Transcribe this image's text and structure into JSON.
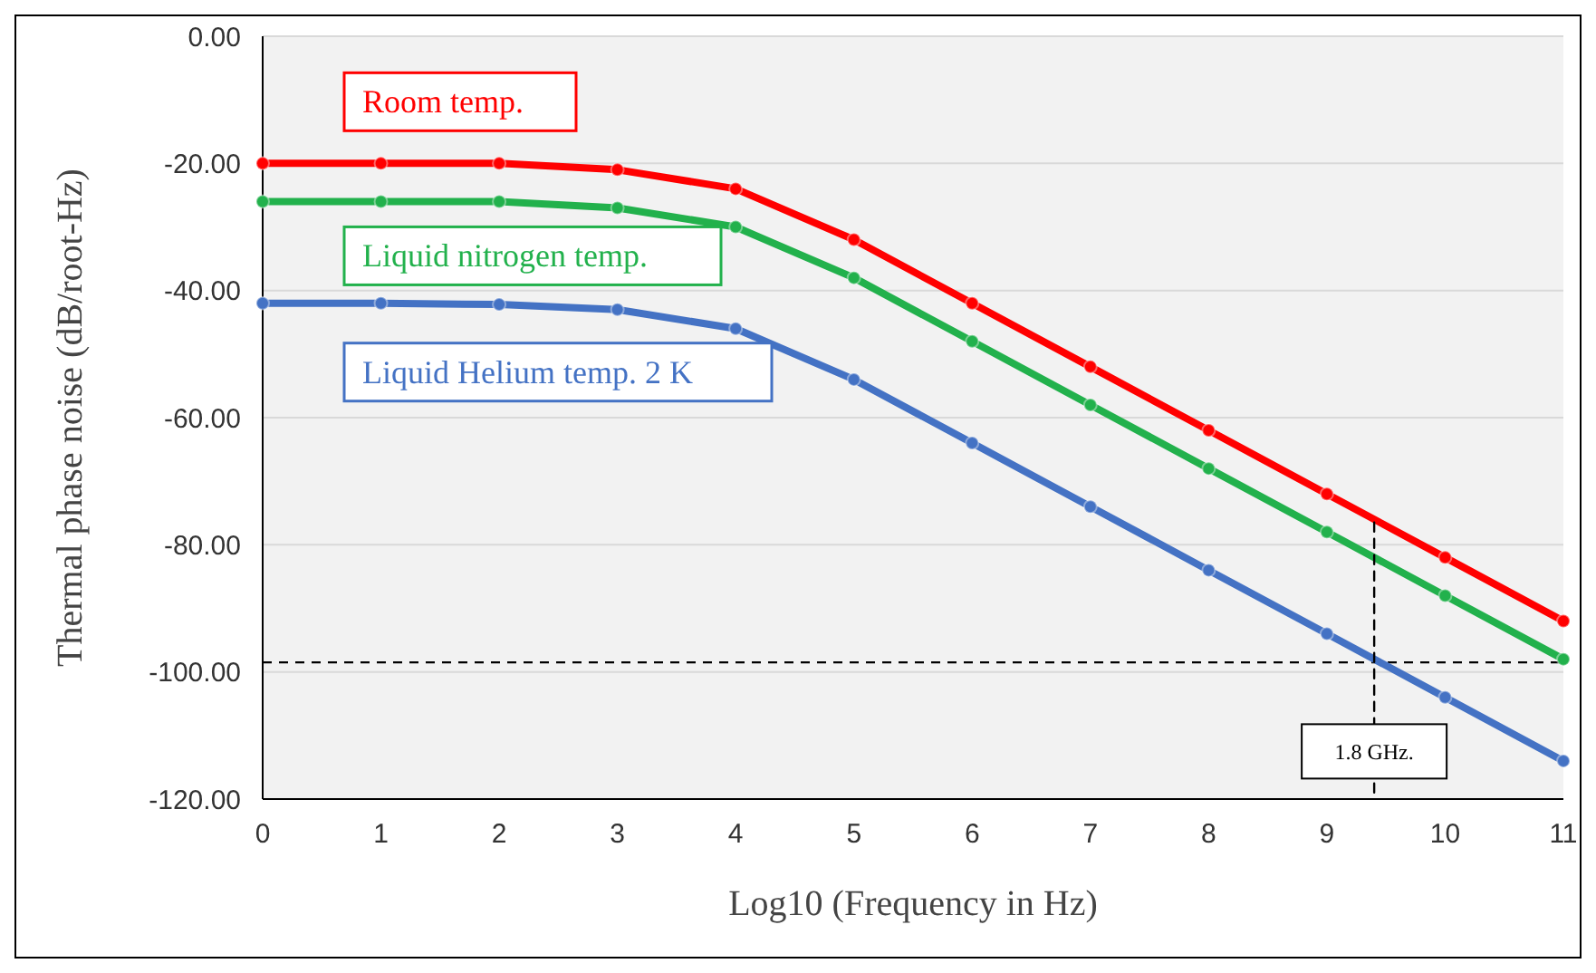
{
  "chart_data": {
    "type": "line",
    "xlabel": "Log10 (Frequency in Hz)",
    "ylabel": "Thermal  phase noise (dB/root-Hz)",
    "x": [
      0,
      1,
      2,
      3,
      4,
      5,
      6,
      7,
      8,
      9,
      10,
      11
    ],
    "xlim": [
      0,
      11
    ],
    "xticks": [
      0,
      1,
      2,
      3,
      4,
      5,
      6,
      7,
      8,
      9,
      10,
      11
    ],
    "ylim": [
      -120,
      0
    ],
    "yticks": [
      {
        "value": -120,
        "label": "-120.00"
      },
      {
        "value": -100,
        "label": "-100.00"
      },
      {
        "value": -80,
        "label": "-80.00"
      },
      {
        "value": -60,
        "label": "-60.00"
      },
      {
        "value": -40,
        "label": "-40.00"
      },
      {
        "value": -20,
        "label": "-20.00"
      },
      {
        "value": 0,
        "label": "0.00"
      }
    ],
    "grid": "y",
    "marker": "circle",
    "line_style": "solid",
    "series": [
      {
        "name": "Room temp.",
        "color": "#ff0000",
        "values": [
          -20,
          -20,
          -20,
          -21,
          -24,
          -32,
          -42,
          -52,
          -62,
          -72,
          -82,
          -92
        ]
      },
      {
        "name": "Liquid nitrogen temp.",
        "color": "#22b14c",
        "values": [
          -26,
          -26,
          -26,
          -27,
          -30,
          -38,
          -48,
          -58,
          -68,
          -78,
          -88,
          -98
        ]
      },
      {
        "name": "Liquid Helium temp. 2 K",
        "color": "#4472c4",
        "values": [
          -42,
          -42,
          -42.2,
          -43,
          -46,
          -54,
          -64,
          -74,
          -84,
          -94,
          -104,
          -114
        ]
      },
      {
        "type": "line",
        "color": "#000000",
        "line_style": "dashed",
        "marker": "none",
        "x": [
          9.4,
          9.4
        ],
        "values": [
          -76.5,
          -120
        ]
      }
    ],
    "ref_lines": [
      {
        "axis": "y",
        "value": -98.5,
        "color": "#000000",
        "line_style": "dashed"
      }
    ],
    "annotations": [
      {
        "text": "1.8 GHz.",
        "x": 9.4,
        "y": -112.5
      }
    ]
  }
}
